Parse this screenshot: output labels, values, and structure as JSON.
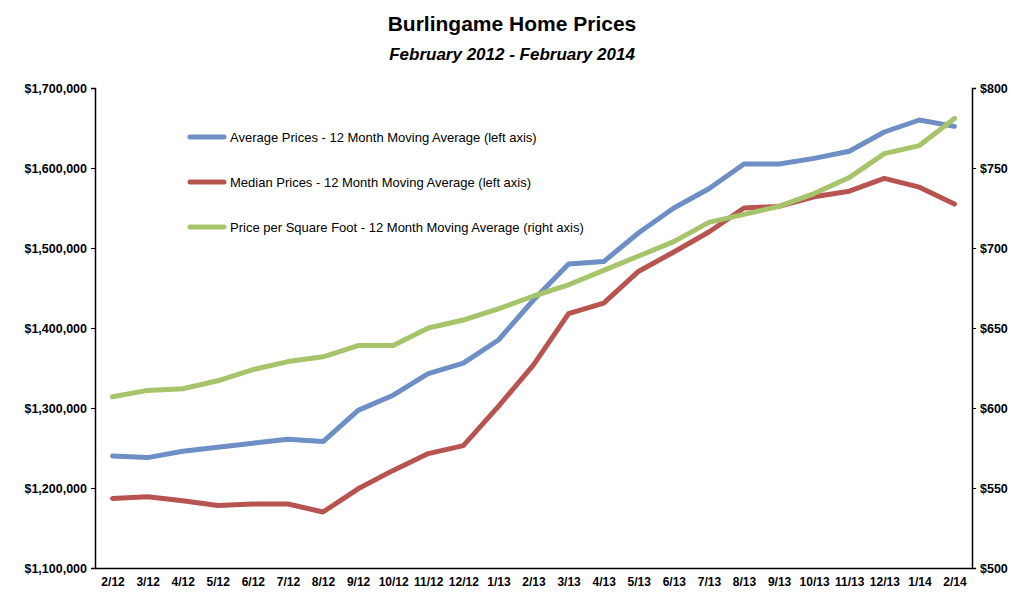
{
  "chart_data": {
    "type": "line",
    "title": "Burlingame Home Prices",
    "subtitle": "February 2012 - February 2014",
    "categories": [
      "2/12",
      "3/12",
      "4/12",
      "5/12",
      "6/12",
      "7/12",
      "8/12",
      "9/12",
      "10/12",
      "11/12",
      "12/12",
      "1/13",
      "2/13",
      "3/13",
      "4/13",
      "5/13",
      "6/13",
      "7/13",
      "8/13",
      "9/13",
      "10/13",
      "11/13",
      "12/13",
      "1/14",
      "2/14"
    ],
    "series": [
      {
        "name": "Average Prices - 12 Month Moving Average (left axis)",
        "color": "#6d8fc6",
        "axis": "y",
        "values": [
          1240000,
          1238000,
          1246000,
          1251000,
          1256000,
          1261000,
          1258000,
          1297000,
          1316000,
          1343000,
          1356000,
          1385000,
          1435000,
          1480000,
          1483000,
          1519000,
          1550000,
          1574000,
          1605000,
          1605000,
          1612000,
          1621000,
          1645000,
          1660000,
          1652000
        ]
      },
      {
        "name": "Median Prices - 12 Month Moving Average (left axis)",
        "color": "#b85450",
        "axis": "y",
        "values": [
          1187000,
          1189000,
          1184000,
          1178000,
          1180000,
          1180000,
          1170000,
          1199000,
          1222000,
          1243000,
          1253000,
          1302000,
          1354000,
          1418000,
          1431000,
          1471000,
          1495000,
          1520000,
          1550000,
          1552000,
          1564000,
          1571000,
          1587000,
          1576000,
          1555000
        ]
      },
      {
        "name": "Price per Square Foot - 12 Month Moving Average (right axis)",
        "color": "#a6c46a",
        "axis": "y2",
        "values": [
          607,
          611,
          612,
          617,
          624,
          629,
          632,
          639,
          639,
          650,
          655,
          662,
          670,
          677,
          686,
          695,
          704,
          716,
          721,
          726,
          734,
          744,
          759,
          764,
          781
        ]
      }
    ],
    "ylim": [
      1100000,
      1700000
    ],
    "yticks": [
      {
        "value": 1100000,
        "label": "$1,100,000"
      },
      {
        "value": 1200000,
        "label": "$1,200,000"
      },
      {
        "value": 1300000,
        "label": "$1,300,000"
      },
      {
        "value": 1400000,
        "label": "$1,400,000"
      },
      {
        "value": 1500000,
        "label": "$1,500,000"
      },
      {
        "value": 1600000,
        "label": "$1,600,000"
      },
      {
        "value": 1700000,
        "label": "$1,700,000"
      }
    ],
    "y2lim": [
      500,
      800
    ],
    "y2ticks": [
      {
        "value": 500,
        "label": "$500"
      },
      {
        "value": 550,
        "label": "$550"
      },
      {
        "value": 600,
        "label": "$600"
      },
      {
        "value": 650,
        "label": "$650"
      },
      {
        "value": 700,
        "label": "$700"
      },
      {
        "value": 750,
        "label": "$750"
      },
      {
        "value": 800,
        "label": "$800"
      }
    ],
    "grid": false,
    "legend": "upper left"
  }
}
